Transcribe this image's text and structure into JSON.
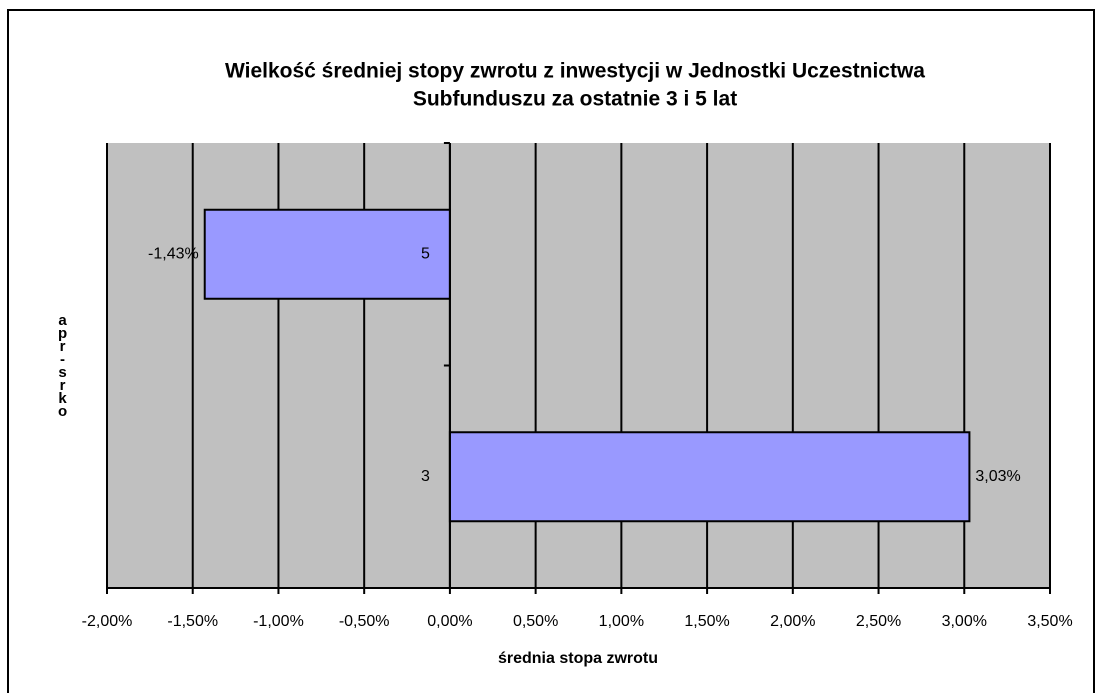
{
  "chart_data": {
    "type": "hbar",
    "title": [
      "Wielkość średniej stopy zwrotu z inwestycji w Jednostki Uczestnictwa",
      "Subfunduszu za ostatnie 3 i 5 lat"
    ],
    "categories": [
      "5",
      "3"
    ],
    "values": [
      -1.43,
      3.03
    ],
    "value_labels": [
      "-1,43%",
      "3,03%"
    ],
    "color": "#9999ff",
    "xlabel": "średnia stopa zwrotu",
    "ylabel": "apr-srko",
    "xlim": [
      -2,
      3.5
    ],
    "xticks": [
      {
        "value": -2,
        "label": "-2,00%"
      },
      {
        "value": -1.5,
        "label": "-1,50%"
      },
      {
        "value": -1,
        "label": "-1,00%"
      },
      {
        "value": -0.5,
        "label": "-0,50%"
      },
      {
        "value": 0,
        "label": "0,00%"
      },
      {
        "value": 0.5,
        "label": "0,50%"
      },
      {
        "value": 1,
        "label": "1,00%"
      },
      {
        "value": 1.5,
        "label": "1,50%"
      },
      {
        "value": 2,
        "label": "2,00%"
      },
      {
        "value": 2.5,
        "label": "2,50%"
      },
      {
        "value": 3,
        "label": "3,00%"
      },
      {
        "value": 3.5,
        "label": "3,50%"
      }
    ],
    "grid": true
  }
}
